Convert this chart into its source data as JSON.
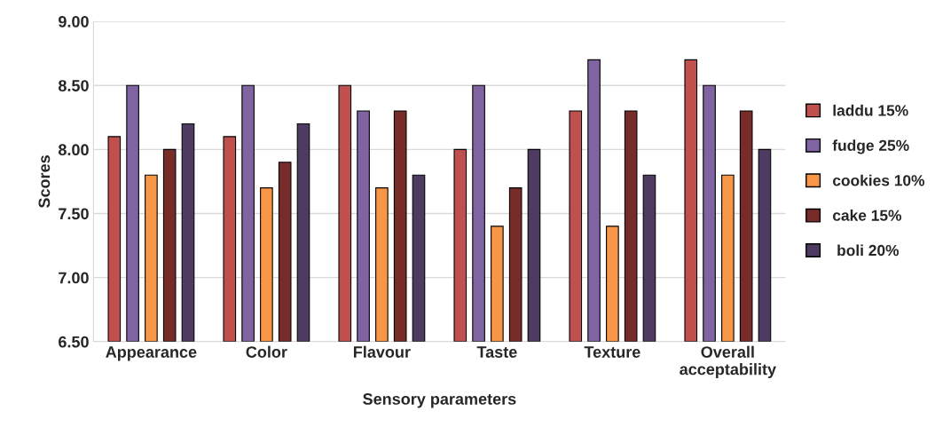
{
  "chart_data": {
    "type": "bar",
    "xlabel": "Sensory parameters",
    "ylabel": "Scores",
    "categories": [
      "Appearance",
      "Color",
      "Flavour",
      "Taste",
      "Texture",
      "Overall\nacceptability"
    ],
    "series": [
      {
        "name": "laddu 15%",
        "color": "#c0504d",
        "values": [
          8.1,
          8.1,
          8.5,
          8.0,
          8.3,
          8.7
        ]
      },
      {
        "name": "fudge 25%",
        "color": "#8064a2",
        "values": [
          8.5,
          8.5,
          8.3,
          8.5,
          8.7,
          8.5
        ]
      },
      {
        "name": "cookies 10%",
        "color": "#f79646",
        "values": [
          7.8,
          7.7,
          7.7,
          7.4,
          7.4,
          7.8
        ]
      },
      {
        "name": "cake 15%",
        "color": "#772c2a",
        "values": [
          8.0,
          7.9,
          8.3,
          7.7,
          8.3,
          8.3
        ]
      },
      {
        "name": " boli 20%",
        "color": "#4d3b62",
        "values": [
          8.2,
          8.2,
          7.8,
          8.0,
          7.8,
          8.0
        ]
      }
    ],
    "ylim": [
      6.5,
      9.0
    ],
    "yticks": [
      {
        "value": 6.5,
        "label": "6.50"
      },
      {
        "value": 7.0,
        "label": "7.00"
      },
      {
        "value": 7.5,
        "label": "7.50"
      },
      {
        "value": 8.0,
        "label": "8.00"
      },
      {
        "value": 8.5,
        "label": "8.50"
      },
      {
        "value": 9.0,
        "label": "9.00"
      }
    ],
    "grid": "y",
    "legend": "right"
  }
}
